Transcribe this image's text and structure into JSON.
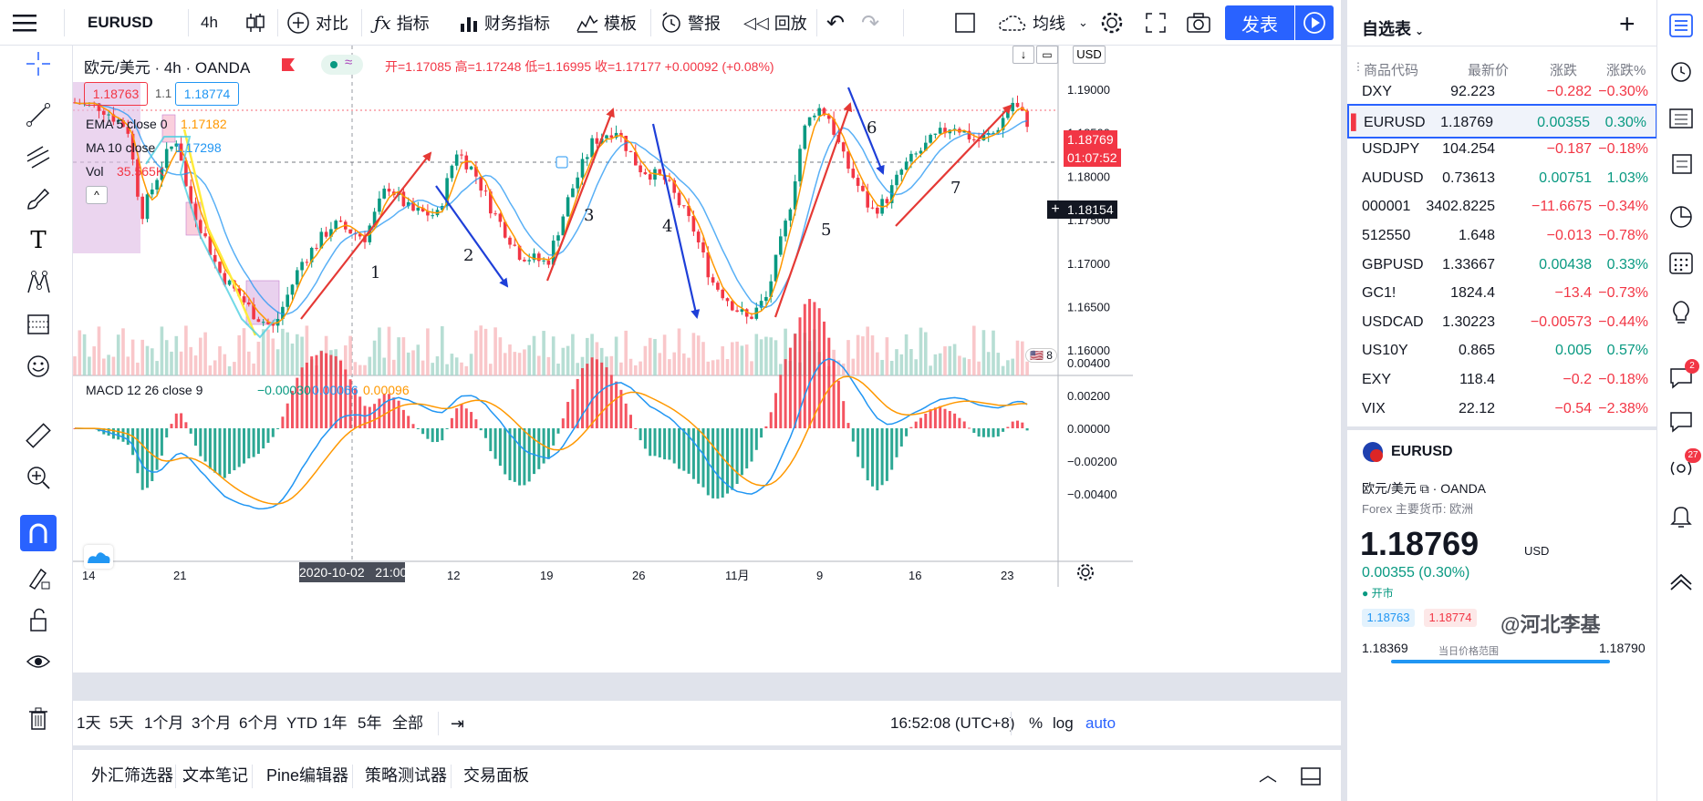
{
  "toolbar": {
    "symbol": "EURUSD",
    "interval": "4h",
    "compare": "对比",
    "indicators": "指标",
    "financials": "财务指标",
    "templates": "模板",
    "alerts": "警报",
    "replay": "回放",
    "layout_name": "均线",
    "publish": "发表"
  },
  "legend": {
    "title": "欧元/美元 · 4h · OANDA",
    "ohlc": "开=1.17085 高=1.17248 低=1.16995 收=1.17177 +0.00092 (+0.08%)",
    "bid": "1.18763",
    "spread": "1.1",
    "ask": "1.18774",
    "ema_label": "EMA 5 close 0",
    "ema_value": "1.17182",
    "ma_label": "MA 10 close",
    "ma_value": "1.17298",
    "vol_label": "Vol",
    "vol_value": "35.565K",
    "currency": "USD"
  },
  "price_axis": {
    "ticks": [
      "1.19000",
      "1.18500",
      "1.18000",
      "1.17500",
      "1.17000",
      "1.16500",
      "1.16000"
    ],
    "last_price": "1.18769",
    "countdown": "01:07:52",
    "crosshair_price": "1.18154"
  },
  "macd": {
    "label": "MACD 12 26 close 9",
    "v1": "−0.00030",
    "v2": "0.00066",
    "v3": "0.00096",
    "ticks": [
      "0.00400",
      "0.00200",
      "0.00000",
      "−0.00200",
      "−0.00400"
    ]
  },
  "time_axis": {
    "ticks": [
      "14",
      "21",
      "12",
      "19",
      "26",
      "11月",
      "9",
      "16",
      "23"
    ],
    "crosshair_time": "2020-10-02   21:00"
  },
  "annotations": [
    "1",
    "2",
    "3",
    "4",
    "5",
    "6",
    "7"
  ],
  "ranges": [
    "1天",
    "5天",
    "1个月",
    "3个月",
    "6个月",
    "YTD",
    "1年",
    "5年",
    "全部"
  ],
  "clock": "16:52:08 (UTC+8)",
  "scale_opts": [
    "%",
    "log",
    "auto"
  ],
  "bottom_tabs": [
    "外汇筛选器",
    "文本笔记",
    "Pine编辑器",
    "策略测试器",
    "交易面板"
  ],
  "watchlist": {
    "title": "自选表",
    "headers": [
      "商品代码",
      "最新价",
      "涨跌",
      "涨跌%"
    ],
    "rows": [
      {
        "sym": "DXY",
        "last": "92.223",
        "chg": "−0.282",
        "pct": "−0.30%",
        "dir": "neg"
      },
      {
        "sym": "EURUSD",
        "last": "1.18769",
        "chg": "0.00355",
        "pct": "0.30%",
        "dir": "pos"
      },
      {
        "sym": "USDJPY",
        "last": "104.254",
        "chg": "−0.187",
        "pct": "−0.18%",
        "dir": "neg"
      },
      {
        "sym": "AUDUSD",
        "last": "0.73613",
        "chg": "0.00751",
        "pct": "1.03%",
        "dir": "pos"
      },
      {
        "sym": "000001",
        "last": "3402.8225",
        "chg": "−11.6675",
        "pct": "−0.34%",
        "dir": "neg"
      },
      {
        "sym": "512550",
        "last": "1.648",
        "chg": "−0.013",
        "pct": "−0.78%",
        "dir": "neg"
      },
      {
        "sym": "GBPUSD",
        "last": "1.33667",
        "chg": "0.00438",
        "pct": "0.33%",
        "dir": "pos"
      },
      {
        "sym": "GC1!",
        "last": "1824.4",
        "chg": "−13.4",
        "pct": "−0.73%",
        "dir": "neg"
      },
      {
        "sym": "USDCAD",
        "last": "1.30223",
        "chg": "−0.00573",
        "pct": "−0.44%",
        "dir": "neg"
      },
      {
        "sym": "US10Y",
        "last": "0.865",
        "chg": "0.005",
        "pct": "0.57%",
        "dir": "pos"
      },
      {
        "sym": "EXY",
        "last": "118.4",
        "chg": "−0.2",
        "pct": "−0.18%",
        "dir": "neg"
      },
      {
        "sym": "VIX",
        "last": "22.12",
        "chg": "−0.54",
        "pct": "−2.38%",
        "dir": "neg"
      }
    ]
  },
  "detail": {
    "symbol": "EURUSD",
    "name": "欧元/美元",
    "exchange": "OANDA",
    "category": "Forex 主要货币: 欧洲",
    "price": "1.18769",
    "currency": "USD",
    "change": "0.00355 (0.30%)",
    "market_status": "开市",
    "bid": "1.18763",
    "ask": "1.18774",
    "low": "1.18369",
    "range_label": "当日价格范围",
    "high": "1.18790"
  },
  "watermark": "@河北李基",
  "colors": {
    "accent": "#2962ff",
    "up": "#089981",
    "down": "#f23645",
    "orange": "#ff9800",
    "blue_ma": "#2196f3"
  }
}
